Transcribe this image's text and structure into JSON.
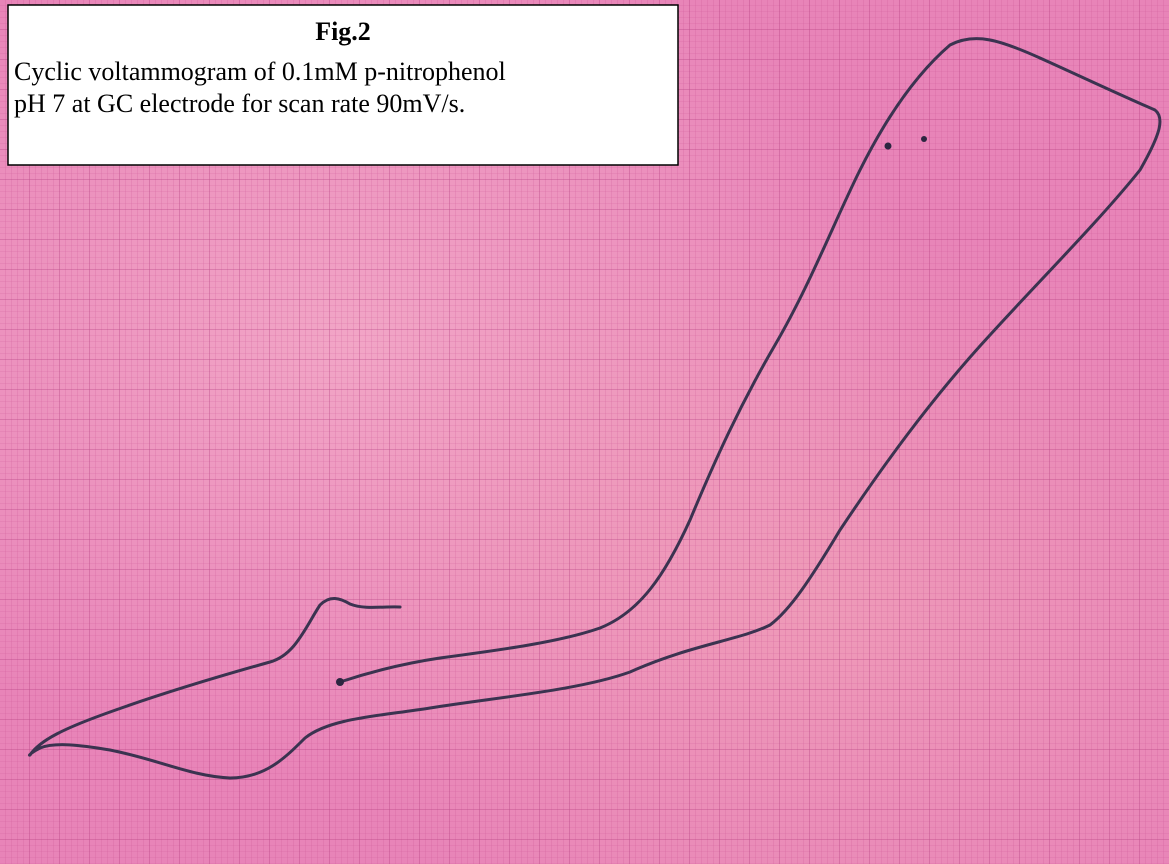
{
  "figure": {
    "title": "Fig.2",
    "caption_lines": [
      "Cyclic voltammogram of 0.1mM p-nitrophenol",
      "pH 7 at GC electrode for scan rate 90mV/s."
    ]
  }
}
